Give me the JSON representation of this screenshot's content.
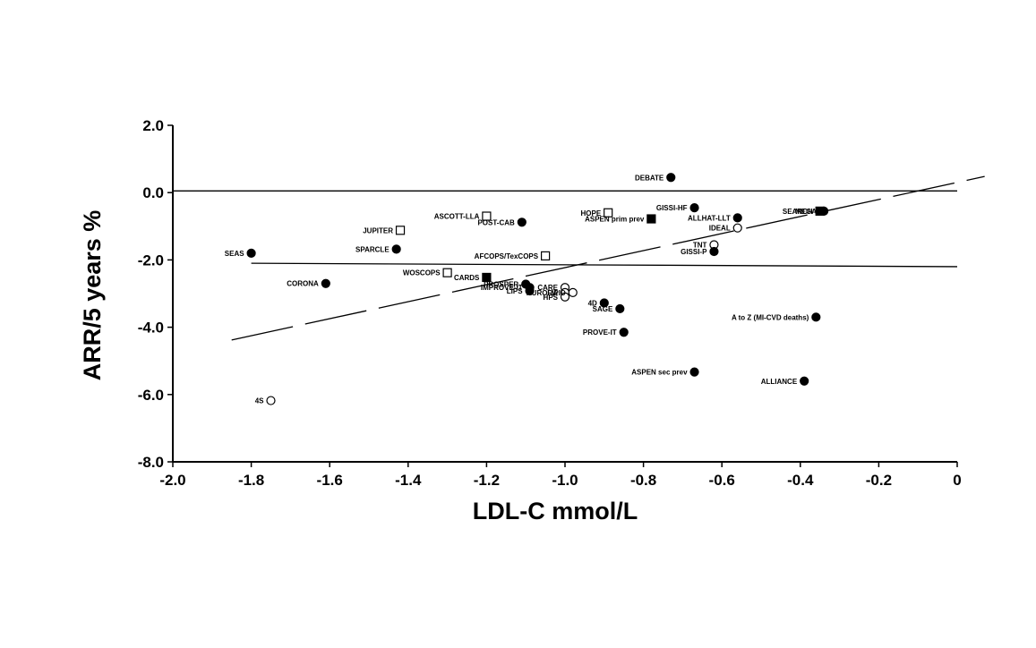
{
  "chart_data": {
    "type": "scatter",
    "title": "",
    "xlabel": "LDL-C mmol/L",
    "ylabel": "ARR/5 years %",
    "xlim": [
      -2.0,
      0
    ],
    "ylim": [
      -8.0,
      2.0
    ],
    "x_ticks": [
      "-2.0",
      "-1.8",
      "-1.6",
      "-1.4",
      "-1.2",
      "-1.0",
      "-0.8",
      "-0.6",
      "-0.4",
      "-0.2",
      "0"
    ],
    "y_ticks": [
      "2.0",
      "0.0",
      "-2.0",
      "-4.0",
      "-6.0",
      "-8.0"
    ],
    "grid": false,
    "legend": "none",
    "marker_styles": {
      "filled-circle": "filled circle",
      "open-circle": "open circle",
      "filled-square": "filled square",
      "open-square": "open square"
    },
    "points": [
      {
        "label": "DEBATE",
        "x": -0.73,
        "y": 0.45,
        "marker": "filled-circle"
      },
      {
        "label": "GISSI-HF",
        "x": -0.67,
        "y": -0.45,
        "marker": "filled-circle"
      },
      {
        "label": "SEARCH",
        "x": -0.35,
        "y": -0.55,
        "marker": "filled-square"
      },
      {
        "label": "MEGA",
        "x": -0.34,
        "y": -0.55,
        "marker": "filled-circle"
      },
      {
        "label": "HOPE",
        "x": -0.89,
        "y": -0.6,
        "marker": "open-square"
      },
      {
        "label": "ASPEN prim prev",
        "x": -0.78,
        "y": -0.78,
        "marker": "filled-square"
      },
      {
        "label": "ASCOTT-LLA",
        "x": -1.2,
        "y": -0.7,
        "marker": "open-square"
      },
      {
        "label": "POST-CAB",
        "x": -1.11,
        "y": -0.88,
        "marker": "filled-circle"
      },
      {
        "label": "ALLHAT-LLT",
        "x": -0.56,
        "y": -0.75,
        "marker": "filled-circle"
      },
      {
        "label": "IDEAL",
        "x": -0.56,
        "y": -1.05,
        "marker": "open-circle"
      },
      {
        "label": "JUPITER",
        "x": -1.42,
        "y": -1.12,
        "marker": "open-square"
      },
      {
        "label": "TNT",
        "x": -0.62,
        "y": -1.55,
        "marker": "open-circle"
      },
      {
        "label": "GISSI-P",
        "x": -0.62,
        "y": -1.75,
        "marker": "filled-circle"
      },
      {
        "label": "SEAS",
        "x": -1.8,
        "y": -1.8,
        "marker": "filled-circle"
      },
      {
        "label": "SPARCLE",
        "x": -1.43,
        "y": -1.68,
        "marker": "filled-circle"
      },
      {
        "label": "AFCOPS/TexCOPS",
        "x": -1.05,
        "y": -1.88,
        "marker": "open-square"
      },
      {
        "label": "WOSCOPS",
        "x": -1.3,
        "y": -2.38,
        "marker": "open-square"
      },
      {
        "label": "CARDS",
        "x": -1.2,
        "y": -2.52,
        "marker": "filled-square"
      },
      {
        "label": "CORONA",
        "x": -1.61,
        "y": -2.7,
        "marker": "filled-circle"
      },
      {
        "label": "PROSPER",
        "x": -1.1,
        "y": -2.72,
        "marker": "filled-circle"
      },
      {
        "label": "IMPROVE-IT",
        "x": -1.09,
        "y": -2.82,
        "marker": "filled-circle"
      },
      {
        "label": "LIPS",
        "x": -1.09,
        "y": -2.92,
        "marker": "filled-circle"
      },
      {
        "label": "CARE",
        "x": -1.0,
        "y": -2.82,
        "marker": "open-circle"
      },
      {
        "label": "AURORA",
        "x": -1.0,
        "y": -2.97,
        "marker": "open-circle"
      },
      {
        "label": "LIPID",
        "x": -0.98,
        "y": -2.97,
        "marker": "open-circle"
      },
      {
        "label": "HPS",
        "x": -1.0,
        "y": -3.1,
        "marker": "open-circle"
      },
      {
        "label": "4D",
        "x": -0.9,
        "y": -3.28,
        "marker": "filled-circle"
      },
      {
        "label": "SAGE",
        "x": -0.86,
        "y": -3.45,
        "marker": "filled-circle"
      },
      {
        "label": "A to Z (MI-CVD deaths)",
        "x": -0.36,
        "y": -3.7,
        "marker": "filled-circle"
      },
      {
        "label": "PROVE-IT",
        "x": -0.85,
        "y": -4.15,
        "marker": "filled-circle"
      },
      {
        "label": "ASPEN sec prev",
        "x": -0.67,
        "y": -5.33,
        "marker": "filled-circle"
      },
      {
        "label": "ALLIANCE",
        "x": -0.39,
        "y": -5.6,
        "marker": "filled-circle"
      },
      {
        "label": "4S",
        "x": -1.75,
        "y": -6.18,
        "marker": "open-circle"
      }
    ],
    "reference_lines": [
      {
        "style": "solid",
        "x": [
          -2.0,
          0
        ],
        "y": [
          0.05,
          0.05
        ]
      },
      {
        "style": "solid",
        "x": [
          -1.8,
          0
        ],
        "y": [
          -2.1,
          -2.2
        ]
      },
      {
        "style": "dashed",
        "x": [
          -1.85,
          0.07
        ],
        "y": [
          -4.38,
          0.48
        ]
      }
    ]
  }
}
